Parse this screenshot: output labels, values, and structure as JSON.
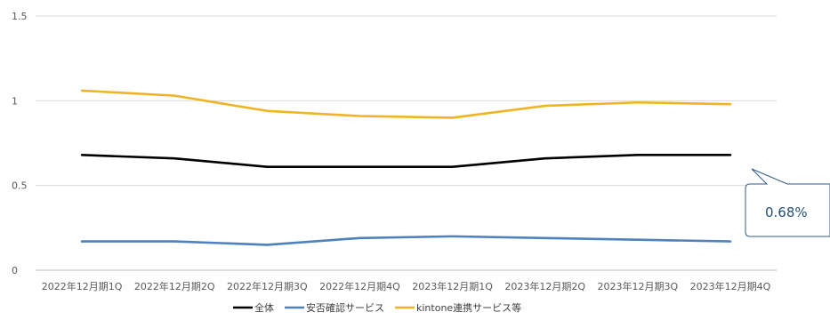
{
  "chart_data": {
    "type": "line",
    "categories": [
      "2022年12月期1Q",
      "2022年12月期2Q",
      "2022年12月期3Q",
      "2022年12月期4Q",
      "2023年12月期1Q",
      "2023年12月期2Q",
      "2023年12月期3Q",
      "2023年12月期4Q"
    ],
    "series": [
      {
        "name": "全体",
        "color": "#000000",
        "values": [
          0.68,
          0.66,
          0.61,
          0.61,
          0.61,
          0.66,
          0.68,
          0.68
        ]
      },
      {
        "name": "安否確認サービス",
        "color": "#4f81bd",
        "values": [
          0.17,
          0.17,
          0.15,
          0.19,
          0.2,
          0.19,
          0.18,
          0.17
        ]
      },
      {
        "name": "kintone連携サービス等",
        "color": "#f0b323",
        "values": [
          1.06,
          1.03,
          0.94,
          0.91,
          0.9,
          0.97,
          0.99,
          0.98
        ]
      }
    ],
    "yticks": [
      "0",
      "0.5",
      "1",
      "1.5"
    ],
    "ylim": [
      0,
      1.5
    ],
    "grid": true,
    "legend_position": "bottom",
    "callout": "0.68%"
  }
}
